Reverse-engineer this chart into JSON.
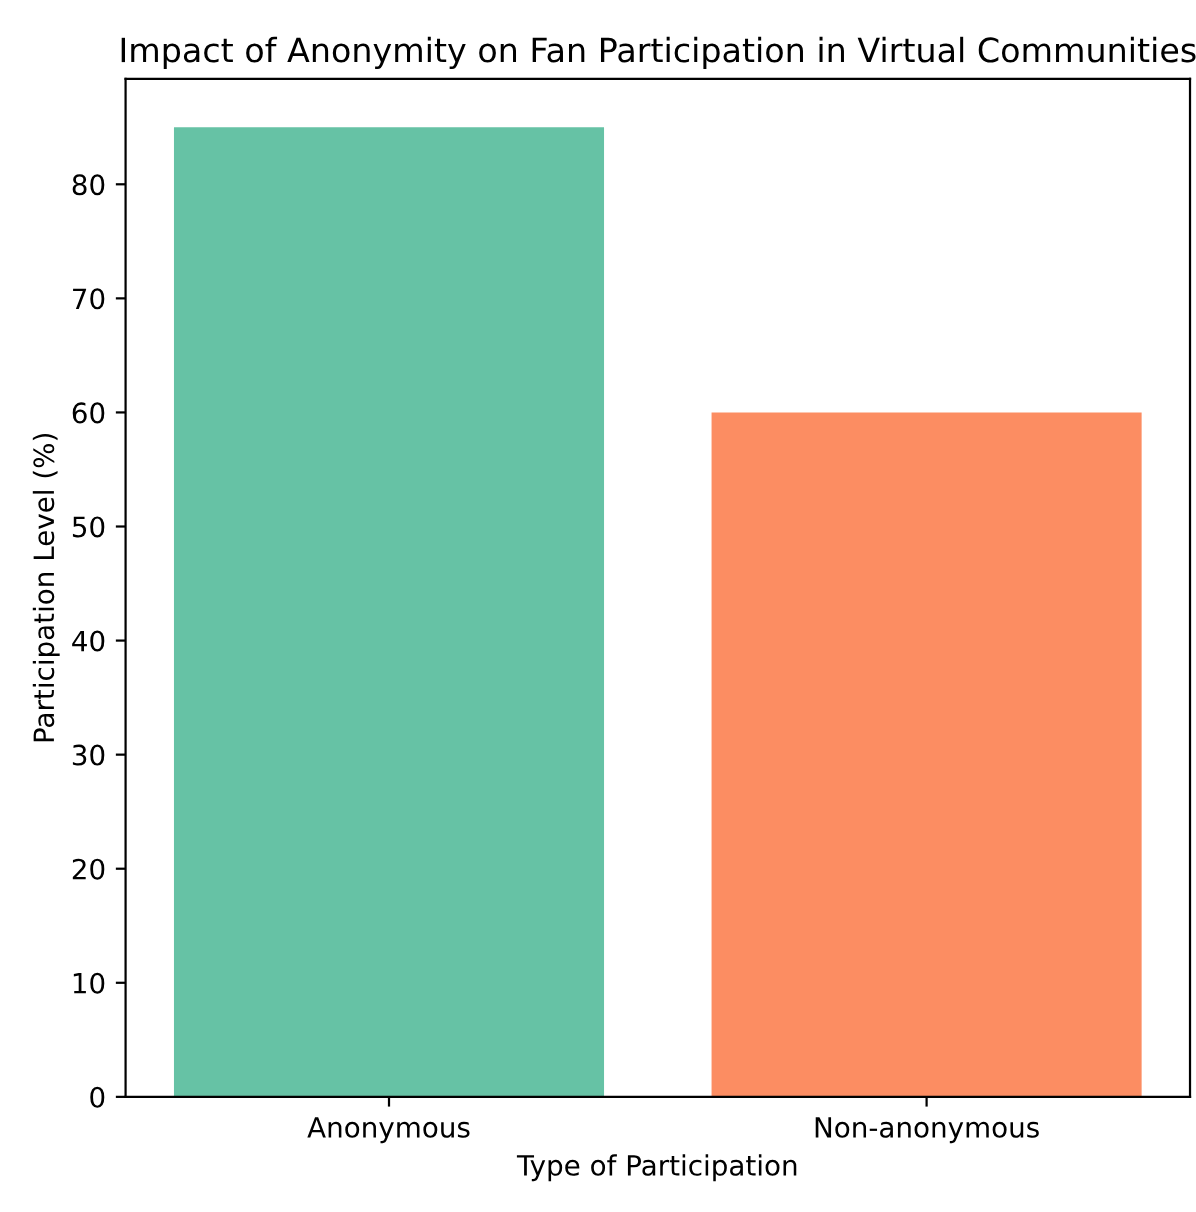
{
  "chart_data": {
    "type": "bar",
    "title": "Impact of Anonymity on Fan Participation in Virtual Communities",
    "xlabel": "Type of Participation",
    "ylabel": "Participation Level (%)",
    "categories": [
      "Anonymous",
      "Non-anonymous"
    ],
    "values": [
      85,
      60
    ],
    "colors": [
      "#66c2a5",
      "#fc8d62"
    ],
    "ylim": [
      0,
      89.25
    ],
    "yticks": [
      0,
      10,
      20,
      30,
      40,
      50,
      60,
      70,
      80
    ],
    "grid": false,
    "legend": false
  }
}
